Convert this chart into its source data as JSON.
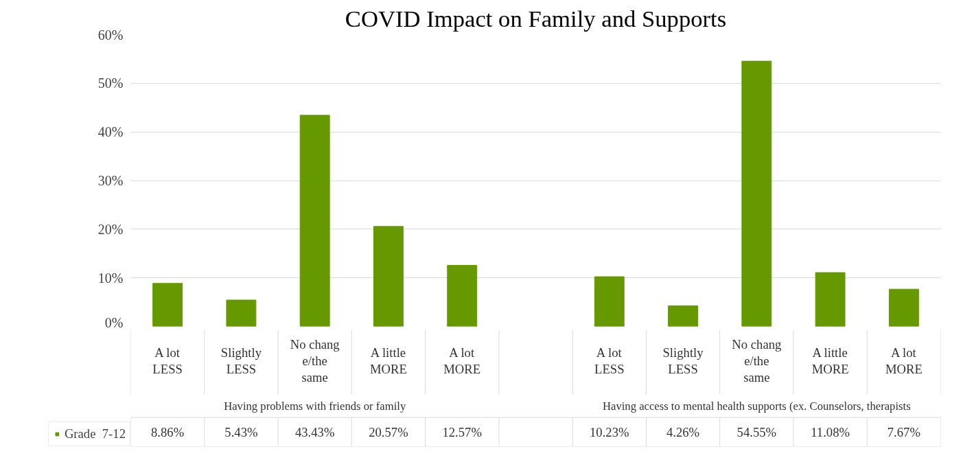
{
  "chart_data": {
    "type": "bar",
    "title": "COVID Impact on Family and Supports",
    "categories": [
      "A lot LESS",
      "Slightly LESS",
      "No change/the same",
      "A little MORE",
      "A lot MORE",
      null,
      "A lot LESS",
      "Slightly LESS",
      "No change/the same",
      "A little MORE",
      "A lot MORE"
    ],
    "series": [
      {
        "name": "Grade  7-12",
        "color": "#669900",
        "values": [
          8.86,
          5.43,
          43.43,
          20.57,
          12.57,
          null,
          10.23,
          4.26,
          54.55,
          11.08,
          7.67
        ],
        "value_labels": [
          "8.86%",
          "5.43%",
          "43.43%",
          "20.57%",
          "12.57%",
          null,
          "10.23%",
          "4.26%",
          "54.55%",
          "11.08%",
          "7.67%"
        ]
      }
    ],
    "annotations": [
      "Having problems with friends or family",
      "Having access to mental health supports (ex. Counselors, therapists"
    ],
    "ylim": [
      0,
      60
    ],
    "yticks": [
      {
        "value": 0,
        "label": "0%"
      },
      {
        "value": 10,
        "label": "10%"
      },
      {
        "value": 20,
        "label": "20%"
      },
      {
        "value": 30,
        "label": "30%"
      },
      {
        "value": 40,
        "label": "40%"
      },
      {
        "value": 50,
        "label": "50%"
      },
      {
        "value": 60,
        "label": "60%"
      }
    ],
    "grid": "y",
    "legend": "bottom"
  }
}
